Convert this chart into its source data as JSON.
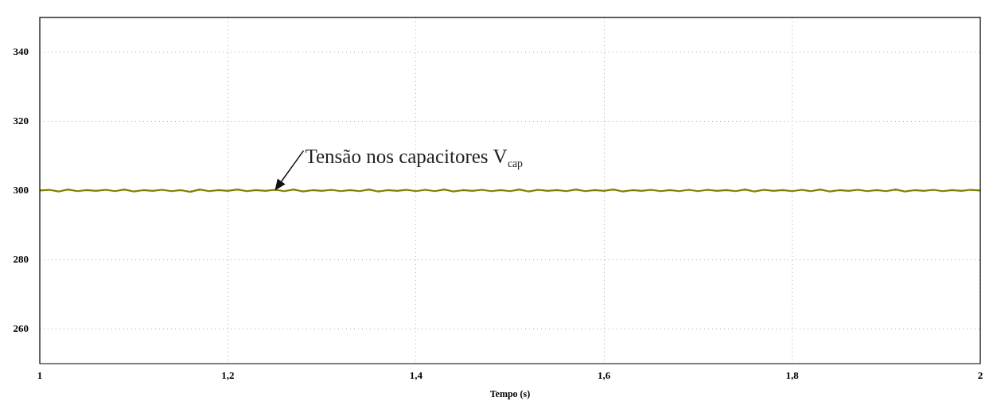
{
  "chart_data": {
    "type": "line",
    "xlabel": "Tempo (s)",
    "x": [
      1,
      1.01,
      1.02,
      1.03,
      1.04,
      1.05,
      1.06,
      1.07,
      1.08,
      1.09,
      1.1,
      1.11,
      1.12,
      1.13,
      1.14,
      1.15,
      1.16,
      1.17,
      1.18,
      1.19,
      1.2,
      1.21,
      1.22,
      1.23,
      1.24,
      1.25,
      1.26,
      1.27,
      1.28,
      1.29,
      1.3,
      1.31,
      1.32,
      1.33,
      1.34,
      1.35,
      1.36,
      1.37,
      1.38,
      1.39,
      1.4,
      1.41,
      1.42,
      1.43,
      1.44,
      1.45,
      1.46,
      1.47,
      1.48,
      1.49,
      1.5,
      1.51,
      1.52,
      1.53,
      1.54,
      1.55,
      1.56,
      1.57,
      1.58,
      1.59,
      1.6,
      1.61,
      1.62,
      1.63,
      1.64,
      1.65,
      1.66,
      1.67,
      1.68,
      1.69,
      1.7,
      1.71,
      1.72,
      1.73,
      1.74,
      1.75,
      1.76,
      1.77,
      1.78,
      1.79,
      1.8,
      1.81,
      1.82,
      1.83,
      1.84,
      1.85,
      1.86,
      1.87,
      1.88,
      1.89,
      1.9,
      1.91,
      1.92,
      1.93,
      1.94,
      1.95,
      1.96,
      1.97,
      1.98,
      1.99,
      2
    ],
    "series": [
      {
        "color": "#7f7f00",
        "values": [
          300,
          300.2,
          299.7,
          300.3,
          299.8,
          300.1,
          299.9,
          300.2,
          299.8,
          300.3,
          299.7,
          300.1,
          299.9,
          300.2,
          299.8,
          300.1,
          299.6,
          300.3,
          299.8,
          300.1,
          299.9,
          300.3,
          299.8,
          300.1,
          299.9,
          300.2,
          299.8,
          300.3,
          299.7,
          300.1,
          299.9,
          300.2,
          299.8,
          300.1,
          299.8,
          300.3,
          299.7,
          300.1,
          299.9,
          300.2,
          299.8,
          300.2,
          299.8,
          300.3,
          299.7,
          300.1,
          299.9,
          300.2,
          299.8,
          300.1,
          299.8,
          300.3,
          299.7,
          300.2,
          299.9,
          300.1,
          299.8,
          300.3,
          299.8,
          300.1,
          299.9,
          300.3,
          299.7,
          300.1,
          299.9,
          300.2,
          299.8,
          300.1,
          299.8,
          300.2,
          299.8,
          300.2,
          299.9,
          300.1,
          299.8,
          300.3,
          299.7,
          300.2,
          299.9,
          300.1,
          299.8,
          300.2,
          299.8,
          300.3,
          299.7,
          300.1,
          299.9,
          300.2,
          299.8,
          300.1,
          299.8,
          300.3,
          299.7,
          300.1,
          299.9,
          300.2,
          299.8,
          300.1,
          299.9,
          300.2,
          300
        ]
      }
    ],
    "xlim": [
      1,
      2
    ],
    "xticks": [
      1,
      {
        "value": 1.2,
        "label": "1,2"
      },
      {
        "value": 1.4,
        "label": "1,4"
      },
      {
        "value": 1.6,
        "label": "1,6"
      },
      {
        "value": 1.8,
        "label": "1,8"
      },
      2
    ],
    "ylim": [
      250,
      350
    ],
    "yticks": [
      260,
      280,
      300,
      320,
      340
    ],
    "grid": true,
    "legend": false,
    "marker": "none",
    "line_style": "solid",
    "annotations": [
      {
        "text": "Tensão nos capacitores V$_{cap}$",
        "x": 1.25,
        "y": 300
      }
    ]
  }
}
